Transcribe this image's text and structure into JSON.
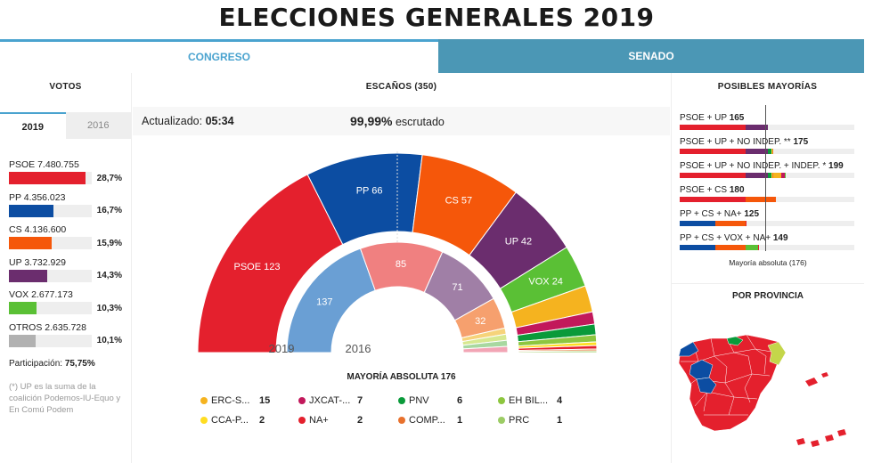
{
  "title": "ELECCIONES GENERALES 2019",
  "tabs": {
    "congreso": "CONGRESO",
    "senado": "SENADO"
  },
  "left": {
    "heading": "VOTOS",
    "years": [
      "2019",
      "2016"
    ],
    "votes": [
      {
        "label": "PSOE 7.480.755",
        "pct": "28,7%",
        "value": 28.7,
        "color": "#e4202d"
      },
      {
        "label": "PP 4.356.023",
        "pct": "16,7%",
        "value": 16.7,
        "color": "#0c4da2"
      },
      {
        "label": "CS 4.136.600",
        "pct": "15,9%",
        "value": 15.9,
        "color": "#f5570a"
      },
      {
        "label": "UP 3.732.929",
        "pct": "14,3%",
        "value": 14.3,
        "color": "#6b2d6e"
      },
      {
        "label": "VOX 2.677.173",
        "pct": "10,3%",
        "value": 10.3,
        "color": "#5ac035"
      },
      {
        "label": "OTROS 2.635.728",
        "pct": "10,1%",
        "value": 10.1,
        "color": "#b1b1b1"
      }
    ],
    "participacion_label": "Participación:",
    "participacion_value": "75,75%",
    "note": "(*) UP es la suma de la coalición Podemos-IU-Equo y En Comú Podem"
  },
  "center": {
    "heading": "ESCAÑOS (350)",
    "updated_label": "Actualizado:",
    "updated_time": "05:34",
    "scrutinized_pct": "99,99%",
    "scrutinized_label": "escrutado",
    "year_outer": "2019",
    "year_inner": "2016",
    "mayoria": "MAYORÍA ABSOLUTA 176"
  },
  "chart_data": {
    "type": "pie",
    "title": "ESCAÑOS (350)",
    "total": 350,
    "series": [
      {
        "name": "2019",
        "slices": [
          {
            "party": "PSOE",
            "seats": 123,
            "color": "#e4202d"
          },
          {
            "party": "PP",
            "seats": 66,
            "color": "#0c4da2"
          },
          {
            "party": "CS",
            "seats": 57,
            "color": "#f5570a"
          },
          {
            "party": "UP",
            "seats": 42,
            "color": "#6b2d6e"
          },
          {
            "party": "VOX",
            "seats": 24,
            "color": "#5ac035"
          },
          {
            "party": "ERC-S...",
            "seats": 15,
            "color": "#f5b31f"
          },
          {
            "party": "JXCAT-...",
            "seats": 7,
            "color": "#c2185b"
          },
          {
            "party": "PNV",
            "seats": 6,
            "color": "#0a9a3a"
          },
          {
            "party": "EH BIL...",
            "seats": 4,
            "color": "#8dc63f"
          },
          {
            "party": "CCA-P...",
            "seats": 2,
            "color": "#ffdd22"
          },
          {
            "party": "NA+",
            "seats": 2,
            "color": "#e4202d"
          },
          {
            "party": "COMP...",
            "seats": 1,
            "color": "#e8712d"
          },
          {
            "party": "PRC",
            "seats": 1,
            "color": "#9ccc65"
          }
        ]
      },
      {
        "name": "2016",
        "slices": [
          {
            "party": "PP",
            "seats": 137,
            "color": "#6a9fd4"
          },
          {
            "party": "PSOE",
            "seats": 85,
            "color": "#f08080"
          },
          {
            "party": "UP",
            "seats": 71,
            "color": "#a07fa6"
          },
          {
            "party": "CS",
            "seats": 32,
            "color": "#f6a06e"
          },
          {
            "party": "Otros",
            "seats": 25,
            "colors": [
              "#f6d37a",
              "#d7e890",
              "#a8d8a0",
              "#f2a5b5"
            ]
          }
        ]
      }
    ],
    "legend": [
      {
        "party": "ERC-S...",
        "seats": "15",
        "color": "#f5b31f"
      },
      {
        "party": "JXCAT-...",
        "seats": "7",
        "color": "#c2185b"
      },
      {
        "party": "PNV",
        "seats": "6",
        "color": "#0a9a3a"
      },
      {
        "party": "EH BIL...",
        "seats": "4",
        "color": "#8dc63f"
      },
      {
        "party": "CCA-P...",
        "seats": "2",
        "color": "#ffdd22"
      },
      {
        "party": "NA+",
        "seats": "2",
        "color": "#e4202d"
      },
      {
        "party": "COMP...",
        "seats": "1",
        "color": "#e8712d"
      },
      {
        "party": "PRC",
        "seats": "1",
        "color": "#9ccc65"
      }
    ]
  },
  "right": {
    "heading": "POSIBLES MAYORÍAS",
    "majorities": [
      {
        "label": "PSOE + UP",
        "total": "165",
        "parts": [
          [
            123,
            "#e4202d"
          ],
          [
            42,
            "#6b2d6e"
          ]
        ]
      },
      {
        "label": "PSOE + UP + NO INDEP. **",
        "total": "175",
        "parts": [
          [
            123,
            "#e4202d"
          ],
          [
            42,
            "#6b2d6e"
          ],
          [
            6,
            "#0a9a3a"
          ],
          [
            2,
            "#ffdd22"
          ],
          [
            1,
            "#9ccc65"
          ],
          [
            1,
            "#e8712d"
          ]
        ]
      },
      {
        "label": "PSOE + UP + NO INDEP. + INDEP. *",
        "total": "199",
        "parts": [
          [
            123,
            "#e4202d"
          ],
          [
            42,
            "#6b2d6e"
          ],
          [
            6,
            "#0a9a3a"
          ],
          [
            2,
            "#ffdd22"
          ],
          [
            1,
            "#9ccc65"
          ],
          [
            1,
            "#e8712d"
          ],
          [
            15,
            "#f5b31f"
          ],
          [
            7,
            "#c2185b"
          ],
          [
            2,
            "#5ac035"
          ]
        ]
      },
      {
        "label": "PSOE + CS",
        "total": "180",
        "parts": [
          [
            123,
            "#e4202d"
          ],
          [
            57,
            "#f5570a"
          ]
        ]
      },
      {
        "label": "PP + CS + NA+",
        "total": "125",
        "parts": [
          [
            66,
            "#0c4da2"
          ],
          [
            57,
            "#f5570a"
          ],
          [
            2,
            "#e4202d"
          ]
        ]
      },
      {
        "label": "PP + CS + VOX + NA+",
        "total": "149",
        "parts": [
          [
            66,
            "#0c4da2"
          ],
          [
            57,
            "#f5570a"
          ],
          [
            24,
            "#5ac035"
          ],
          [
            2,
            "#e4202d"
          ]
        ]
      }
    ],
    "majority_note": "Mayoría absoluta (176)",
    "provinces_heading": "POR PROVINCIA"
  }
}
